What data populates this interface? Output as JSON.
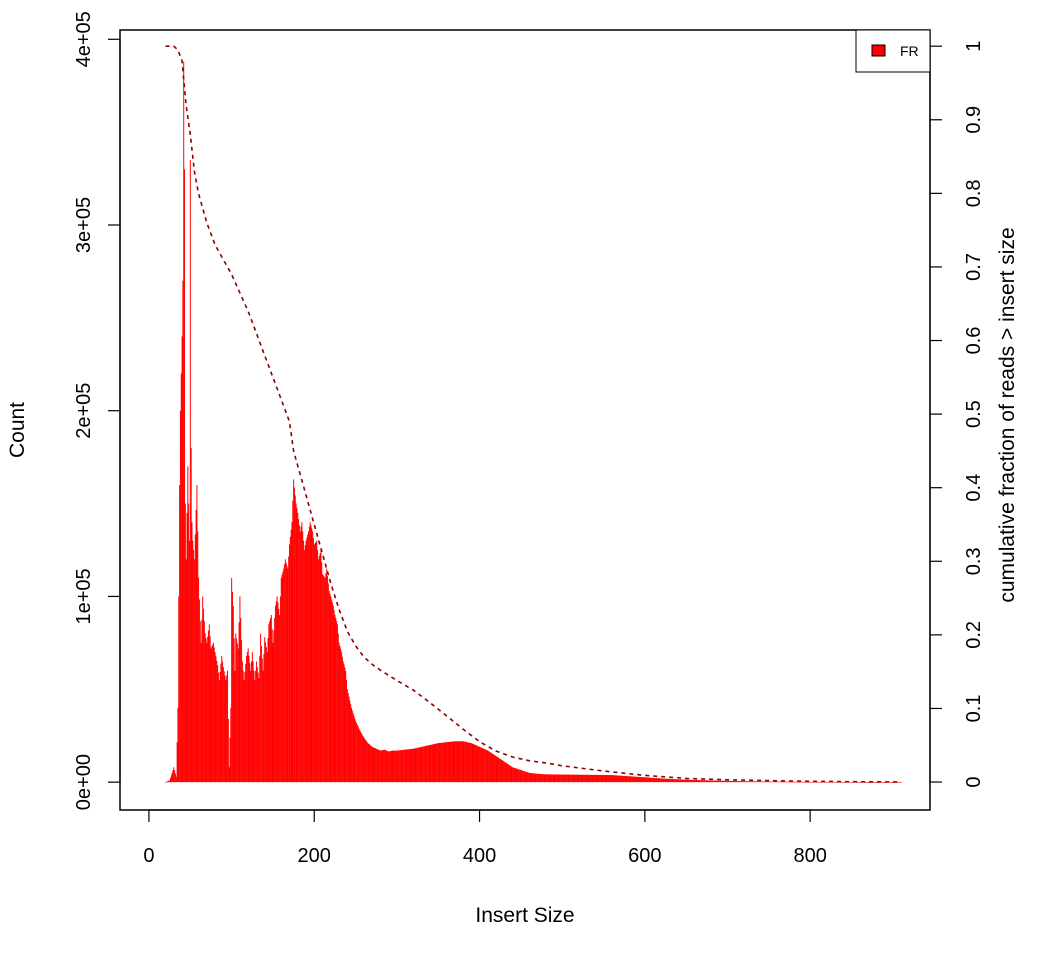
{
  "chart_data": {
    "type": "bar",
    "title": "",
    "xlabel": "Insert Size",
    "ylabel": "Count",
    "ylabel_right": "cumulative fraction of reads > insert size",
    "xlim": [
      -35,
      945
    ],
    "ylim": [
      -15000,
      405000
    ],
    "y2lim": [
      -0.038,
      1.022
    ],
    "x_ticks": [
      0,
      200,
      400,
      600,
      800
    ],
    "x_tick_labels": [
      "0",
      "200",
      "400",
      "600",
      "800"
    ],
    "y_ticks": [
      0,
      100000,
      200000,
      300000,
      400000
    ],
    "y_tick_labels": [
      "0e+00",
      "1e+05",
      "2e+05",
      "3e+05",
      "4e+05"
    ],
    "y2_ticks": [
      0,
      0.1,
      0.2,
      0.3,
      0.4,
      0.5,
      0.6,
      0.7,
      0.8,
      0.9,
      1
    ],
    "y2_tick_labels": [
      "0",
      "0.1",
      "0.2",
      "0.3",
      "0.4",
      "0.5",
      "0.6",
      "0.7",
      "0.8",
      "0.9",
      "1"
    ],
    "grid": false,
    "legend": {
      "position": "top-right",
      "entries": [
        "FR"
      ]
    },
    "colors": {
      "bars": "#ff0000",
      "cumulative": "#8b0000",
      "legend_fill": "#ff0000"
    },
    "series": [
      {
        "name": "FR",
        "kind": "histogram",
        "x": [
          20,
          25,
          28,
          30,
          33,
          35,
          37,
          38,
          40,
          41,
          42,
          43,
          44,
          45,
          47,
          49,
          50,
          51,
          52,
          53,
          55,
          58,
          60,
          63,
          65,
          68,
          70,
          73,
          75,
          78,
          80,
          83,
          85,
          88,
          90,
          93,
          95,
          97,
          99,
          100,
          102,
          104,
          105,
          108,
          110,
          113,
          115,
          118,
          120,
          123,
          125,
          128,
          130,
          133,
          135,
          138,
          140,
          143,
          145,
          148,
          150,
          153,
          155,
          158,
          160,
          163,
          165,
          168,
          170,
          173,
          175,
          178,
          180,
          183,
          185,
          188,
          190,
          193,
          195,
          198,
          200,
          203,
          205,
          208,
          210,
          213,
          215,
          218,
          220,
          223,
          225,
          228,
          230,
          233,
          235,
          238,
          240,
          245,
          250,
          255,
          260,
          265,
          270,
          275,
          280,
          285,
          290,
          295,
          300,
          310,
          320,
          330,
          340,
          350,
          360,
          370,
          380,
          390,
          400,
          410,
          420,
          430,
          440,
          450,
          460,
          470,
          480,
          500,
          520,
          540,
          560,
          580,
          600,
          620,
          640,
          660,
          680,
          700,
          720,
          740,
          760,
          780,
          800,
          820,
          840,
          860,
          880,
          900,
          910
        ],
        "values": [
          0,
          1000,
          5000,
          8000,
          3000,
          40000,
          160000,
          200000,
          240000,
          270000,
          388000,
          330000,
          150000,
          120000,
          170000,
          130000,
          335000,
          180000,
          140000,
          130000,
          120000,
          160000,
          110000,
          75000,
          100000,
          80000,
          75000,
          85000,
          72000,
          75000,
          70000,
          63000,
          55000,
          68000,
          62000,
          55000,
          60000,
          8000,
          40000,
          110000,
          95000,
          60000,
          80000,
          72000,
          100000,
          65000,
          55000,
          68000,
          72000,
          60000,
          70000,
          55000,
          65000,
          56000,
          80000,
          60000,
          78000,
          70000,
          85000,
          90000,
          75000,
          95000,
          100000,
          90000,
          110000,
          115000,
          120000,
          115000,
          128000,
          140000,
          163000,
          150000,
          145000,
          135000,
          140000,
          125000,
          130000,
          135000,
          140000,
          135000,
          128000,
          130000,
          120000,
          125000,
          112000,
          110000,
          115000,
          103000,
          100000,
          95000,
          90000,
          85000,
          75000,
          70000,
          65000,
          60000,
          50000,
          40000,
          33000,
          28000,
          24000,
          21000,
          19000,
          18000,
          17000,
          17500,
          16500,
          17000,
          17000,
          17500,
          18000,
          19000,
          20000,
          21000,
          21500,
          22000,
          22000,
          21000,
          19000,
          17000,
          14000,
          11000,
          8000,
          6500,
          5000,
          4500,
          4200,
          4100,
          4000,
          3900,
          3800,
          3200,
          2600,
          2000,
          1500,
          1200,
          900,
          700,
          500,
          400,
          300,
          200,
          150,
          120,
          100,
          80,
          60,
          50,
          40
        ]
      },
      {
        "name": "",
        "kind": "cumulative",
        "axis": "right",
        "line_style": "dashed",
        "x": [
          20,
          30,
          35,
          40,
          45,
          50,
          55,
          60,
          70,
          80,
          90,
          100,
          110,
          120,
          130,
          140,
          150,
          160,
          170,
          175,
          180,
          190,
          200,
          210,
          220,
          230,
          240,
          250,
          260,
          270,
          280,
          290,
          300,
          320,
          340,
          360,
          380,
          400,
          420,
          440,
          460,
          480,
          500,
          550,
          600,
          650,
          700,
          750,
          800,
          850,
          900,
          910
        ],
        "values": [
          1.0,
          1.0,
          0.995,
          0.98,
          0.92,
          0.88,
          0.83,
          0.8,
          0.76,
          0.73,
          0.71,
          0.69,
          0.665,
          0.64,
          0.61,
          0.58,
          0.55,
          0.52,
          0.49,
          0.45,
          0.43,
          0.39,
          0.35,
          0.31,
          0.27,
          0.235,
          0.205,
          0.185,
          0.17,
          0.16,
          0.152,
          0.145,
          0.138,
          0.125,
          0.108,
          0.09,
          0.072,
          0.055,
          0.042,
          0.034,
          0.029,
          0.026,
          0.022,
          0.015,
          0.009,
          0.005,
          0.003,
          0.002,
          0.001,
          0.0005,
          0.0002,
          0.0
        ]
      }
    ]
  }
}
